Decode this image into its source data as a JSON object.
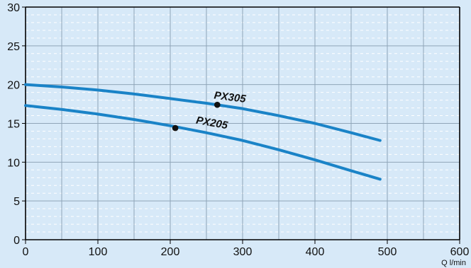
{
  "chart_data": {
    "type": "line",
    "xlabel": "Q l/min",
    "ylabel": "",
    "xlim": [
      0,
      600
    ],
    "ylim": [
      0,
      30
    ],
    "xticks": [
      "0",
      "100",
      "200",
      "300",
      "400",
      "500",
      "600"
    ],
    "yticks": [
      "0",
      "5",
      "10",
      "15",
      "20",
      "25",
      "30"
    ],
    "grid": true,
    "colors": {
      "background": "#d7e9f8",
      "line": "#1a83c7",
      "major_grid": "#8fa5b8",
      "minor_grid": "#ffffff"
    },
    "series": [
      {
        "name": "PX305",
        "x": [
          0,
          50,
          100,
          150,
          200,
          250,
          300,
          350,
          400,
          450,
          490
        ],
        "y": [
          20.0,
          19.7,
          19.3,
          18.8,
          18.2,
          17.6,
          16.9,
          16.0,
          15.0,
          13.8,
          12.8
        ],
        "marker": {
          "x": 265,
          "y": 17.4
        }
      },
      {
        "name": "PX205",
        "x": [
          0,
          50,
          100,
          150,
          200,
          250,
          300,
          350,
          400,
          450,
          490
        ],
        "y": [
          17.3,
          16.8,
          16.2,
          15.5,
          14.7,
          13.8,
          12.8,
          11.6,
          10.3,
          8.9,
          7.8
        ],
        "marker": {
          "x": 207,
          "y": 14.4
        }
      }
    ]
  }
}
